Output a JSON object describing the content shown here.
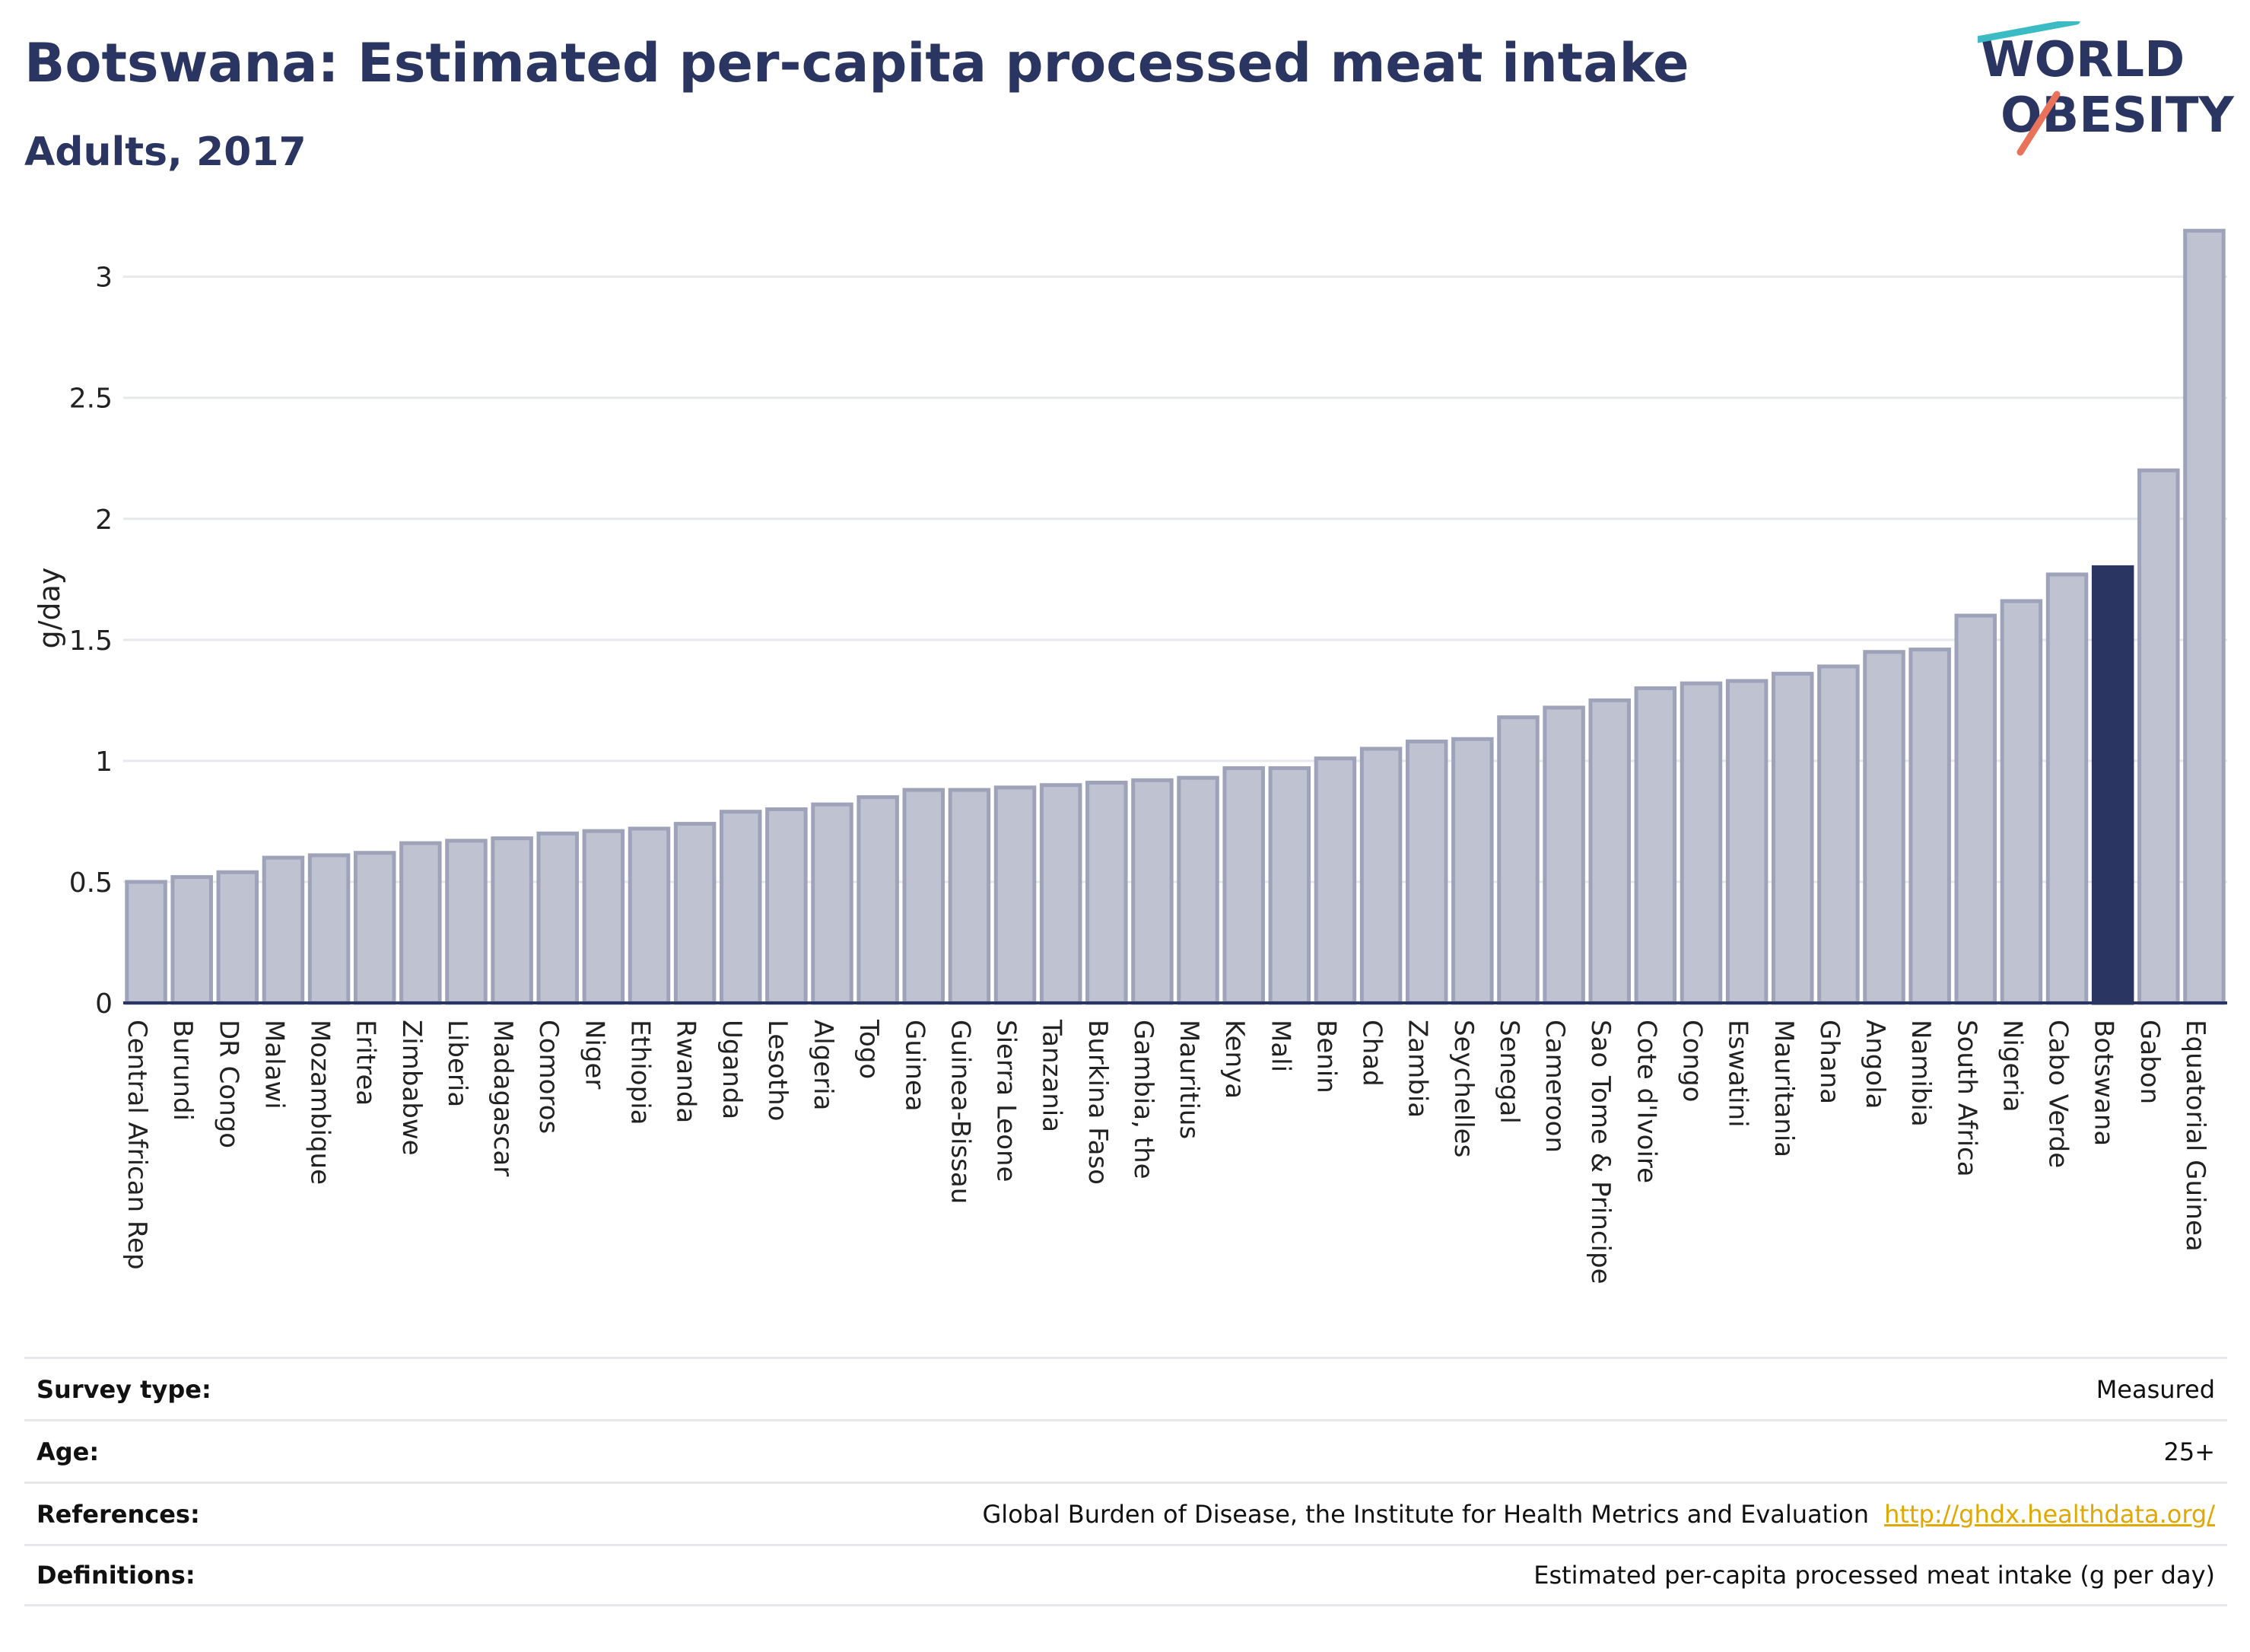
{
  "header": {
    "title": "Botswana: Estimated per-capita processed meat intake",
    "subtitle": "Adults, 2017"
  },
  "logo": {
    "line1": "WORLD",
    "line2": "OBESITY"
  },
  "colors": {
    "title": "#2a3561",
    "bar": "#bfc2d0",
    "bar_border": "#9ea3b9",
    "highlight": "#2a3561",
    "grid": "#e6e8ee",
    "link": "#e0a800",
    "logo_teal": "#3bbcc4",
    "logo_coral": "#e8735a"
  },
  "chart_data": {
    "type": "bar",
    "ylabel": "g/day",
    "xlabel": "",
    "ylim": [
      0,
      3.2
    ],
    "yticks": [
      0,
      0.5,
      1,
      1.5,
      2,
      2.5,
      3
    ],
    "grid": true,
    "highlight": "Botswana",
    "categories": [
      "Central African Rep",
      "Burundi",
      "DR Congo",
      "Malawi",
      "Mozambique",
      "Eritrea",
      "Zimbabwe",
      "Liberia",
      "Madagascar",
      "Comoros",
      "Niger",
      "Ethiopia",
      "Rwanda",
      "Uganda",
      "Lesotho",
      "Algeria",
      "Togo",
      "Guinea",
      "Guinea-Bissau",
      "Sierra Leone",
      "Tanzania",
      "Burkina Faso",
      "Gambia, the",
      "Mauritius",
      "Kenya",
      "Mali",
      "Benin",
      "Chad",
      "Zambia",
      "Seychelles",
      "Senegal",
      "Cameroon",
      "Sao Tome & Principe",
      "Cote d'Ivoire",
      "Congo",
      "Eswatini",
      "Mauritania",
      "Ghana",
      "Angola",
      "Namibia",
      "South Africa",
      "Nigeria",
      "Cabo Verde",
      "Botswana",
      "Gabon",
      "Equatorial Guinea"
    ],
    "values": [
      0.5,
      0.52,
      0.54,
      0.6,
      0.61,
      0.62,
      0.66,
      0.67,
      0.68,
      0.7,
      0.71,
      0.72,
      0.74,
      0.79,
      0.8,
      0.82,
      0.85,
      0.88,
      0.88,
      0.89,
      0.9,
      0.91,
      0.92,
      0.93,
      0.97,
      0.97,
      1.01,
      1.05,
      1.08,
      1.09,
      1.18,
      1.22,
      1.25,
      1.3,
      1.32,
      1.33,
      1.36,
      1.39,
      1.45,
      1.46,
      1.6,
      1.66,
      1.77,
      1.8,
      2.2,
      3.19
    ]
  },
  "info": {
    "rows": [
      {
        "label": "Survey type:",
        "value": "Measured"
      },
      {
        "label": "Age:",
        "value": "25+"
      },
      {
        "label": "References:",
        "value": "Global Burden of Disease, the Institute for Health Metrics and Evaluation",
        "link": "http://ghdx.healthdata.org/"
      },
      {
        "label": "Definitions:",
        "value": "Estimated per-capita processed meat intake (g per day)"
      }
    ]
  }
}
